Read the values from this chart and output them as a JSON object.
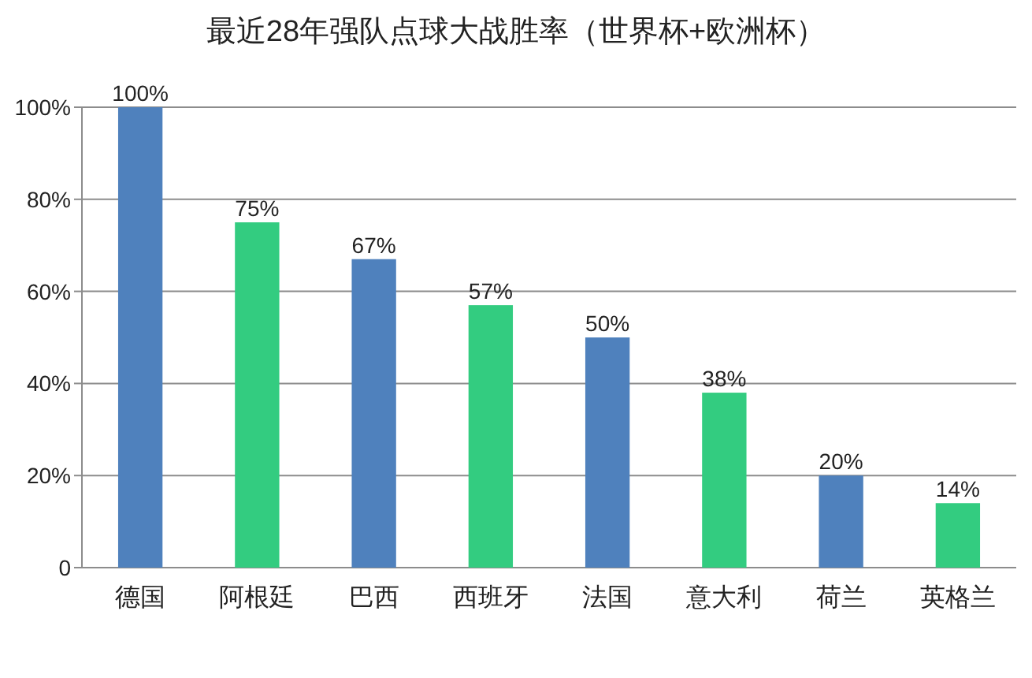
{
  "chart_data": {
    "type": "bar",
    "title": "最近28年强队点球大战胜率（世界杯+欧洲杯）",
    "categories": [
      "德国",
      "阿根廷",
      "巴西",
      "西班牙",
      "法国",
      "意大利",
      "荷兰",
      "英格兰"
    ],
    "values": [
      100,
      75,
      67,
      57,
      50,
      38,
      20,
      14
    ],
    "colors": [
      "#4f81bd",
      "#33cc80",
      "#4f81bd",
      "#33cc80",
      "#4f81bd",
      "#33cc80",
      "#4f81bd",
      "#33cc80"
    ],
    "value_labels": [
      "100%",
      "75%",
      "67%",
      "57%",
      "50%",
      "38%",
      "20%",
      "14%"
    ],
    "ylim": [
      0,
      100
    ],
    "yticks": [
      0,
      {
        "value": 20,
        "label": "20%"
      },
      {
        "value": 40,
        "label": "40%"
      },
      {
        "value": 60,
        "label": "60%"
      },
      {
        "value": 80,
        "label": "80%"
      },
      {
        "value": 100,
        "label": "100%"
      }
    ],
    "grid": "y"
  }
}
